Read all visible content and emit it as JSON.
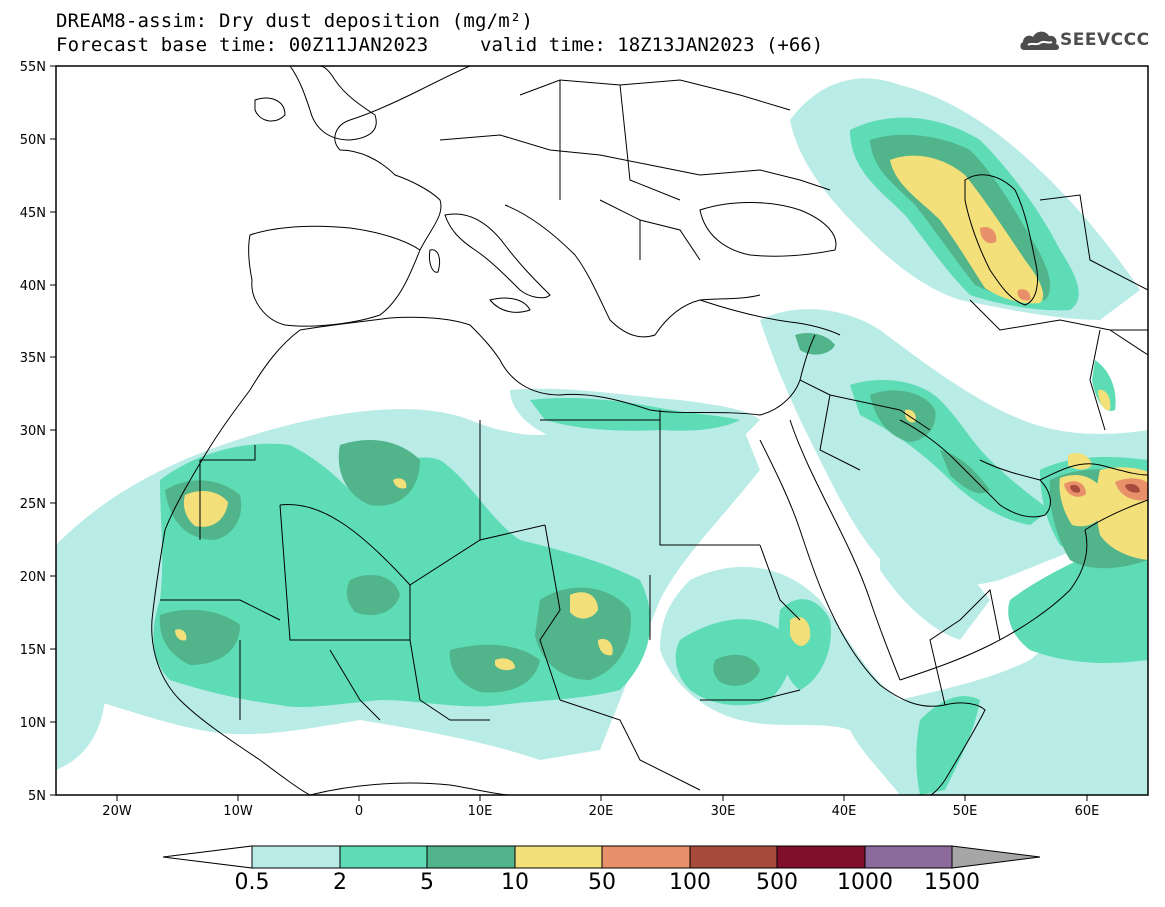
{
  "title": {
    "line1": "DREAM8-assim: Dry dust deposition (mg/m²)",
    "line2": "Forecast base time: 00Z11JAN2023",
    "valid": "valid time: 18Z13JAN2023 (+66)"
  },
  "logo": {
    "text": "SEEVCCC",
    "icon": "cloud-logo-icon"
  },
  "map": {
    "lat_range": [
      5,
      55
    ],
    "lon_range": [
      -25,
      65
    ],
    "lat_ticks": [
      "55N",
      "50N",
      "45N",
      "40N",
      "35N",
      "30N",
      "25N",
      "20N",
      "15N",
      "10N",
      "5N"
    ],
    "lon_ticks": [
      "20W",
      "10W",
      "0",
      "10E",
      "20E",
      "30E",
      "40E",
      "50E",
      "60E"
    ]
  },
  "colorbar": {
    "labels": [
      "0.5",
      "2",
      "5",
      "10",
      "50",
      "100",
      "500",
      "1000",
      "1500"
    ],
    "colors": [
      "#b9ece6",
      "#5ddcb5",
      "#52b48b",
      "#f3e07a",
      "#e8906a",
      "#a94b3c",
      "#7f0f2b",
      "#8c6a9c",
      "#a6a6a6"
    ]
  }
}
